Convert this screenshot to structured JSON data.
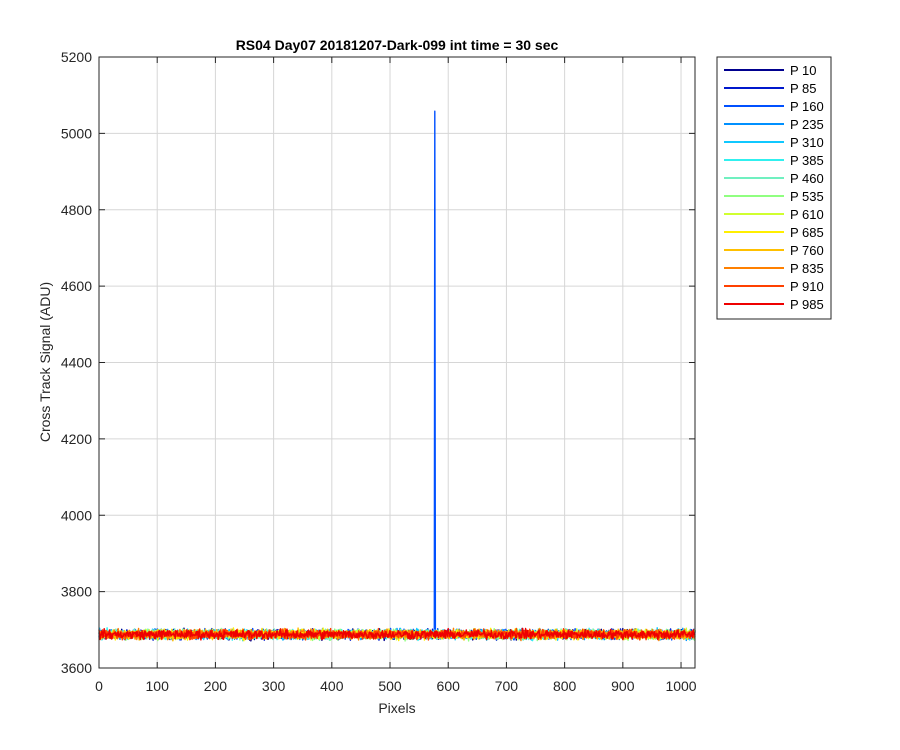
{
  "chart_data": {
    "type": "line",
    "title": "RS04 Day07 20181207-Dark-099 int time = 30 sec",
    "xlabel": "Pixels",
    "ylabel": "Cross Track Signal (ADU)",
    "xlim": [
      0,
      1024
    ],
    "ylim": [
      3600,
      5200
    ],
    "xticks": [
      0,
      100,
      200,
      300,
      400,
      500,
      600,
      700,
      800,
      900,
      1000
    ],
    "yticks": [
      3600,
      3800,
      4000,
      4200,
      4400,
      4600,
      4800,
      5000,
      5200
    ],
    "grid": true,
    "legend_position": "outside-top-right",
    "baseline": 3688,
    "noise_amplitude": 12,
    "spike": {
      "series": "P 160",
      "x": 577,
      "y": 5058
    },
    "series": [
      {
        "name": "P 10",
        "color": "#00008f"
      },
      {
        "name": "P 85",
        "color": "#0018cc"
      },
      {
        "name": "P 160",
        "color": "#0050ff"
      },
      {
        "name": "P 235",
        "color": "#0090ff"
      },
      {
        "name": "P 310",
        "color": "#10c8ff"
      },
      {
        "name": "P 385",
        "color": "#30f0ef"
      },
      {
        "name": "P 460",
        "color": "#70f0c0"
      },
      {
        "name": "P 535",
        "color": "#90ff80"
      },
      {
        "name": "P 610",
        "color": "#d0ff30"
      },
      {
        "name": "P 685",
        "color": "#ffef00"
      },
      {
        "name": "P 760",
        "color": "#ffc000"
      },
      {
        "name": "P 835",
        "color": "#ff8000"
      },
      {
        "name": "P 910",
        "color": "#ff4000"
      },
      {
        "name": "P 985",
        "color": "#ee0000"
      }
    ]
  }
}
